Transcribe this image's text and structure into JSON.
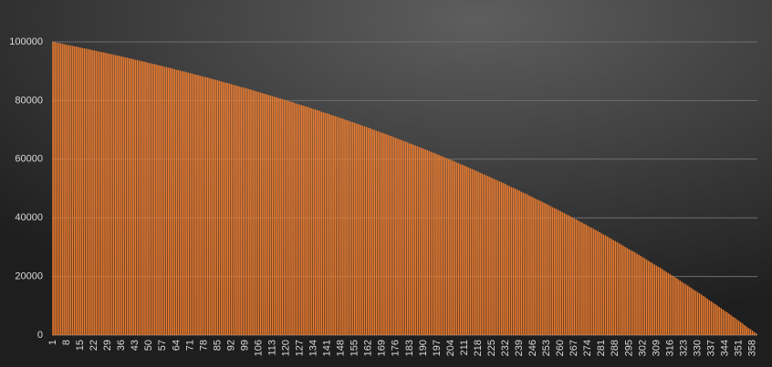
{
  "chart_data": {
    "type": "bar",
    "color": "#ed7d31",
    "grid": true,
    "ylim": [
      0,
      100000
    ],
    "yticks": [
      0,
      20000,
      40000,
      60000,
      80000,
      100000
    ],
    "categories": [
      1,
      null,
      null,
      null,
      null,
      null,
      null,
      8,
      null,
      null,
      null,
      null,
      null,
      null,
      15,
      null,
      null,
      null,
      null,
      null,
      null,
      22,
      null,
      null,
      null,
      null,
      null,
      null,
      29,
      null,
      null,
      null,
      null,
      null,
      null,
      36,
      null,
      null,
      null,
      null,
      null,
      null,
      43,
      null,
      null,
      null,
      null,
      null,
      null,
      50,
      null,
      null,
      null,
      null,
      null,
      null,
      57,
      null,
      null,
      null,
      null,
      null,
      null,
      64,
      null,
      null,
      null,
      null,
      null,
      null,
      71,
      null,
      null,
      null,
      null,
      null,
      null,
      78,
      null,
      null,
      null,
      null,
      null,
      null,
      85,
      null,
      null,
      null,
      null,
      null,
      null,
      92,
      null,
      null,
      null,
      null,
      null,
      null,
      99,
      null,
      null,
      null,
      null,
      null,
      null,
      106,
      null,
      null,
      null,
      null,
      null,
      null,
      113,
      null,
      null,
      null,
      null,
      null,
      null,
      120,
      null,
      null,
      null,
      null,
      null,
      null,
      127,
      null,
      null,
      null,
      null,
      null,
      null,
      134,
      null,
      null,
      null,
      null,
      null,
      null,
      141,
      null,
      null,
      null,
      null,
      null,
      null,
      148,
      null,
      null,
      null,
      null,
      null,
      null,
      155,
      null,
      null,
      null,
      null,
      null,
      null,
      162,
      null,
      null,
      null,
      null,
      null,
      null,
      169,
      null,
      null,
      null,
      null,
      null,
      null,
      176,
      null,
      null,
      null,
      null,
      null,
      null,
      183,
      null,
      null,
      null,
      null,
      null,
      null,
      190,
      null,
      null,
      null,
      null,
      null,
      null,
      197,
      null,
      null,
      null,
      null,
      null,
      null,
      204,
      null,
      null,
      null,
      null,
      null,
      null,
      211,
      null,
      null,
      null,
      null,
      null,
      null,
      218,
      null,
      null,
      null,
      null,
      null,
      null,
      225,
      null,
      null,
      null,
      null,
      null,
      null,
      232,
      null,
      null,
      null,
      null,
      null,
      null,
      239,
      null,
      null,
      null,
      null,
      null,
      null,
      246,
      null,
      null,
      null,
      null,
      null,
      null,
      253,
      null,
      null,
      null,
      null,
      null,
      null,
      260,
      null,
      null,
      null,
      null,
      null,
      null,
      267,
      null,
      null,
      null,
      null,
      null,
      null,
      274,
      null,
      null,
      null,
      null,
      null,
      null,
      281,
      null,
      null,
      null,
      null,
      null,
      null,
      288,
      null,
      null,
      null,
      null,
      null,
      null,
      295,
      null,
      null,
      null,
      null,
      null,
      null,
      302,
      null,
      null,
      null,
      null,
      null,
      null,
      309,
      null,
      null,
      null,
      null,
      null,
      null,
      316,
      null,
      null,
      null,
      null,
      null,
      null,
      323,
      null,
      null,
      null,
      null,
      null,
      null,
      330,
      null,
      null,
      null,
      null,
      null,
      null,
      337,
      null,
      null,
      null,
      null,
      null,
      null,
      344,
      null,
      null,
      null,
      null,
      null,
      null,
      351,
      null,
      null,
      null,
      null,
      null,
      null,
      358,
      null,
      null
    ],
    "values": [
      100000,
      99900,
      99700,
      99600,
      99500,
      99300,
      99200,
      99000,
      98900,
      98800,
      98600,
      98500,
      98400,
      98200,
      98100,
      97900,
      97800,
      97700,
      97500,
      97400,
      97200,
      97100,
      96900,
      96800,
      96600,
      96500,
      96400,
      96200,
      96100,
      95900,
      95800,
      95600,
      95500,
      95300,
      95200,
      95000,
      94900,
      94700,
      94600,
      94400,
      94300,
      94100,
      93900,
      93800,
      93600,
      93500,
      93300,
      93200,
      93000,
      92800,
      92700,
      92500,
      92400,
      92200,
      92000,
      91900,
      91700,
      91500,
      91400,
      91200,
      91100,
      90900,
      90700,
      90500,
      90400,
      90200,
      90000,
      89900,
      89700,
      89500,
      89400,
      89200,
      89000,
      88800,
      88700,
      88500,
      88300,
      88100,
      88000,
      87800,
      87600,
      87400,
      87200,
      87100,
      86900,
      86700,
      86500,
      86300,
      86100,
      86000,
      85800,
      85600,
      85400,
      85200,
      85000,
      84800,
      84600,
      84500,
      84300,
      84100,
      83900,
      83700,
      83500,
      83300,
      83100,
      82900,
      82700,
      82500,
      82300,
      82100,
      81900,
      81700,
      81500,
      81300,
      81100,
      80900,
      80700,
      80500,
      80300,
      80100,
      79900,
      79700,
      79500,
      79300,
      79000,
      78800,
      78600,
      78400,
      78200,
      78000,
      77800,
      77600,
      77300,
      77100,
      76900,
      76700,
      76500,
      76200,
      76000,
      75800,
      75600,
      75400,
      75100,
      74900,
      74700,
      74500,
      74200,
      74000,
      73800,
      73500,
      73300,
      73100,
      72800,
      72600,
      72400,
      72100,
      71900,
      71700,
      71400,
      71200,
      71000,
      70700,
      70500,
      70200,
      70000,
      69700,
      69500,
      69200,
      69000,
      68800,
      68500,
      68300,
      68000,
      67800,
      67500,
      67200,
      67000,
      66700,
      66500,
      66200,
      66000,
      65700,
      65400,
      65200,
      64900,
      64700,
      64400,
      64100,
      63900,
      63600,
      63300,
      63100,
      62800,
      62500,
      62200,
      62000,
      61700,
      61400,
      61200,
      60900,
      60600,
      60300,
      60000,
      59800,
      59500,
      59200,
      58900,
      58600,
      58300,
      58100,
      57800,
      57500,
      57200,
      56900,
      56600,
      56300,
      56000,
      55700,
      55400,
      55100,
      54800,
      54500,
      54200,
      53900,
      53600,
      53300,
      53000,
      52700,
      52400,
      52100,
      51800,
      51500,
      51100,
      50800,
      50500,
      50200,
      49900,
      49600,
      49300,
      48900,
      48600,
      48300,
      48000,
      47600,
      47300,
      47000,
      46600,
      46300,
      46000,
      45700,
      45300,
      45000,
      44700,
      44300,
      44000,
      43600,
      43300,
      43000,
      42600,
      42300,
      41900,
      41600,
      41200,
      40900,
      40500,
      40200,
      39800,
      39500,
      39100,
      38700,
      38400,
      38000,
      37700,
      37300,
      36900,
      36600,
      36200,
      35800,
      35500,
      35100,
      34700,
      34300,
      34000,
      33600,
      33200,
      32800,
      32400,
      32100,
      31700,
      31300,
      30900,
      30500,
      30100,
      29700,
      29300,
      28900,
      28600,
      28200,
      27800,
      27400,
      27000,
      26600,
      26200,
      25700,
      25300,
      24900,
      24500,
      24100,
      23700,
      23300,
      22900,
      22500,
      22000,
      21600,
      21200,
      20800,
      20300,
      19900,
      19500,
      19100,
      18600,
      18200,
      17700,
      17300,
      16900,
      16400,
      16000,
      15500,
      15100,
      14700,
      14200,
      13800,
      13300,
      12900,
      12400,
      11900,
      11500,
      11000,
      10600,
      10100,
      9600,
      9200,
      8700,
      8200,
      7800,
      7300,
      6800,
      6300,
      5900,
      5400,
      4900,
      4400,
      3900,
      3400,
      2900,
      2400,
      2000,
      1500,
      1000,
      500
    ]
  }
}
